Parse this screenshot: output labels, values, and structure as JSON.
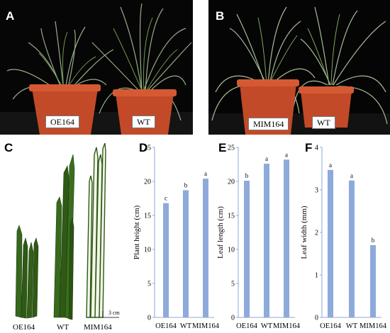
{
  "panels": {
    "a": {
      "letter": "A",
      "pot_left": "OE164",
      "pot_right": "WT"
    },
    "b": {
      "letter": "B",
      "pot_left": "MIM164",
      "pot_right": "WT"
    },
    "c": {
      "letter": "C",
      "labels": [
        "OE164",
        "WT",
        "MIM164"
      ],
      "scale_bar": "3 cm"
    }
  },
  "colors": {
    "bar": "#8eaadb",
    "axis": "#8eaadb",
    "leaf": "#2e5a15",
    "pot": "#c24a28"
  },
  "chart_data": [
    {
      "letter": "D",
      "type": "bar",
      "categories": [
        "OE164",
        "WT",
        "MIM164"
      ],
      "values": [
        16.8,
        18.7,
        20.4
      ],
      "significance": [
        "c",
        "b",
        "a"
      ],
      "ylabel": "Plant height (cm)",
      "ylim": [
        0,
        25
      ],
      "yticks": [
        0,
        5,
        10,
        15,
        20,
        25
      ],
      "ytick_labels": [
        "0",
        "5",
        "10",
        "15",
        "20",
        "25"
      ],
      "grid": false
    },
    {
      "letter": "E",
      "type": "bar",
      "categories": [
        "OE164",
        "WT",
        "MIM164"
      ],
      "values": [
        20.1,
        22.6,
        23.2
      ],
      "significance": [
        "b",
        "a",
        "a"
      ],
      "ylabel": "Leaf length (cm)",
      "ylim": [
        0,
        25
      ],
      "yticks": [
        0,
        5,
        10,
        15,
        20,
        25
      ],
      "ytick_labels": [
        "0",
        "5",
        "10",
        "15",
        "20",
        "25"
      ],
      "grid": false
    },
    {
      "letter": "F",
      "type": "bar",
      "categories": [
        "OE164",
        "WT",
        "MIM164"
      ],
      "values": [
        3.47,
        3.22,
        1.7
      ],
      "significance": [
        "a",
        "a",
        "b"
      ],
      "ylabel": "Leaf width (mm)",
      "ylim": [
        0,
        4
      ],
      "yticks": [
        0,
        1,
        2,
        3,
        4
      ],
      "ytick_labels": [
        "0",
        "1",
        "2",
        "3",
        "4"
      ],
      "grid": false
    }
  ]
}
